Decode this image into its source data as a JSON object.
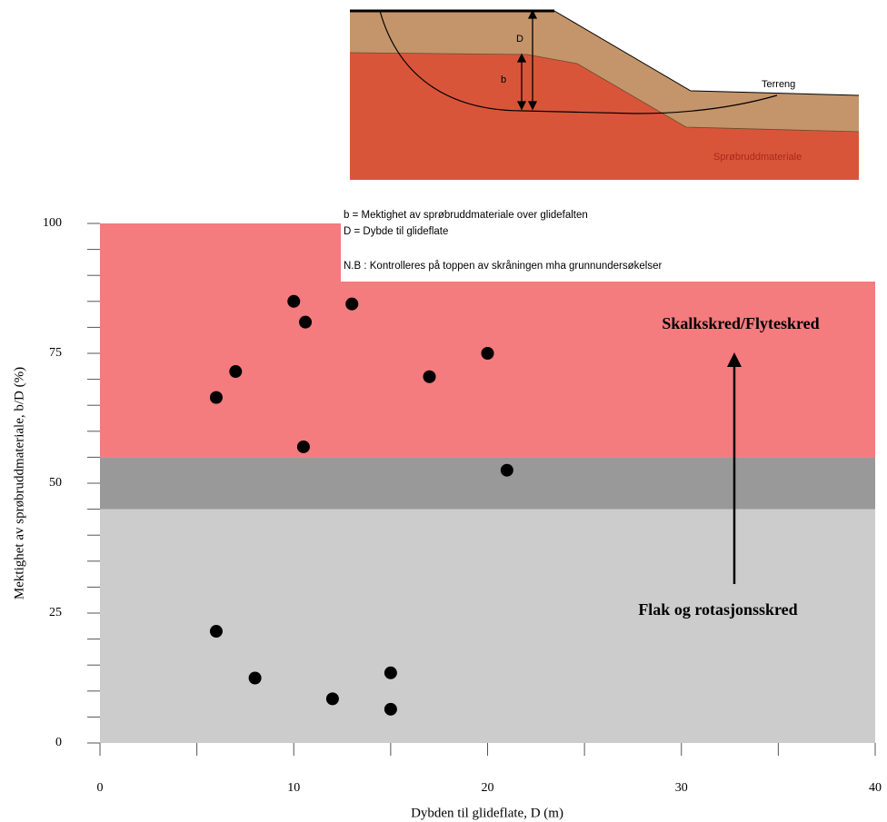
{
  "chart_data": {
    "type": "scatter",
    "xlabel": "Dybden til glideflate, D (m)",
    "ylabel": "Mektighet av sprøbruddmateriale, b/D (%)",
    "x": [
      6,
      7,
      10,
      10.6,
      13,
      10.5,
      17,
      20,
      21,
      6,
      8,
      12,
      15,
      15
    ],
    "values": [
      66.5,
      71.5,
      85,
      81,
      84.5,
      57,
      70.5,
      75,
      52.5,
      21.5,
      12.5,
      8.5,
      13.5,
      6.5
    ],
    "color": "#000000",
    "xlim": [
      0,
      40
    ],
    "ylim": [
      0,
      100
    ],
    "xticks": [
      0,
      10,
      20,
      30,
      40
    ],
    "yticks": [
      0,
      25,
      50,
      75,
      100
    ],
    "xminorticks": [
      5,
      15,
      25,
      35
    ],
    "yminorticks": [
      5,
      10,
      15,
      20,
      30,
      35,
      40,
      45,
      55,
      60,
      65,
      70,
      80,
      85,
      90,
      95
    ],
    "zones": [
      {
        "from": 0,
        "to": 45,
        "color": "#cccccc"
      },
      {
        "from": 45,
        "to": 55,
        "color": "#999999"
      },
      {
        "from": 55,
        "to": 100,
        "color": "#f47b7e"
      }
    ],
    "annotations": [
      "Skalkskred/Flyteskred",
      "Flak og rotasjonsskred"
    ]
  },
  "diagram": {
    "labels": {
      "D": "D",
      "b": "b",
      "terrain": "Terreng",
      "material": "Sprøbruddmateriale"
    },
    "legend": [
      "b = Mektighet av sprøbruddmateriale over glidefalten",
      "D = Dybde til glideflate",
      "N.B : Kontrolleres på toppen av skråningen mha grunnundersøkelser"
    ]
  }
}
